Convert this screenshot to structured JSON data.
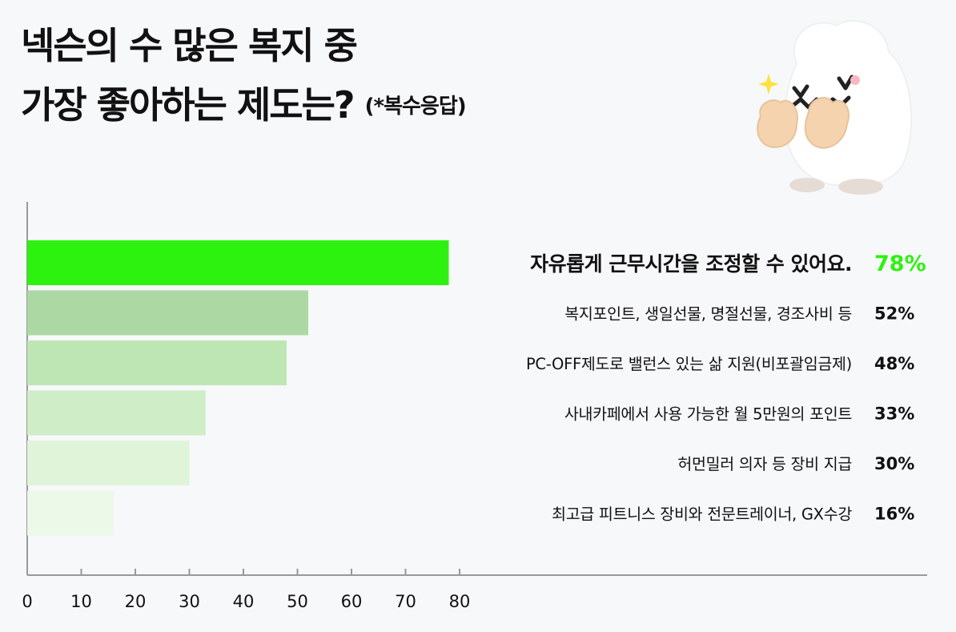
{
  "header": {
    "title_line1": "넥슨의 수 많은 복지 중",
    "title_line2": "가장 좋아하는 제도는?",
    "note": "(*복수응답)"
  },
  "colors": {
    "highlight_bar": "#2df20f",
    "highlight_value": "#2df20f",
    "bar_shades": [
      "#2df20f",
      "#acd9a3",
      "#bee6b5",
      "#cfedc6",
      "#dff4d8",
      "#ecf8e8"
    ],
    "axis": "#999999",
    "text": "#111111"
  },
  "chart_data": {
    "type": "bar",
    "orientation": "horizontal",
    "categories": [
      "자유롭게 근무시간을 조정할 수 있어요.",
      "복지포인트, 생일선물, 명절선물, 경조사비 등",
      "PC-OFF제도로 밸런스 있는 삶 지원(비포괄임금제)",
      "사내카페에서 사용 가능한 월 5만원의 포인트",
      "허먼밀러 의자 등 장비 지급",
      "최고급 피트니스 장비와 전문트레이너, GX수강"
    ],
    "values": [
      78,
      52,
      48,
      33,
      30,
      16
    ],
    "value_labels": [
      "78%",
      "52%",
      "48%",
      "33%",
      "30%",
      "16%"
    ],
    "xlim": [
      0,
      80
    ],
    "xticks": [
      "0",
      "10",
      "20",
      "30",
      "40",
      "50",
      "60",
      "70",
      "80"
    ],
    "xlabel": "",
    "ylabel": "",
    "grid": false,
    "highlight_index": 0
  }
}
